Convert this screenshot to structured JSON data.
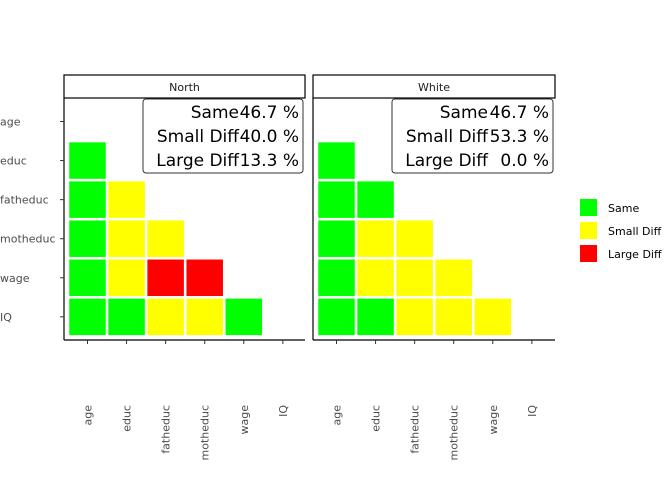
{
  "chart_data": {
    "type": "heatmap",
    "variables": [
      "age",
      "educ",
      "fatheduc",
      "motheduc",
      "wage",
      "IQ"
    ],
    "legend": {
      "placement": "right",
      "entries": [
        {
          "key": "same",
          "label": "Same",
          "color": "#00ff00"
        },
        {
          "key": "small",
          "label": "Small Diff",
          "color": "#ffff00"
        },
        {
          "key": "large",
          "label": "Large Diff",
          "color": "#ff0000"
        }
      ]
    },
    "panels": [
      {
        "title": "North",
        "summary": [
          {
            "label": "Same",
            "value": "46.7 %"
          },
          {
            "label": "Small Diff",
            "value": "40.0 %"
          },
          {
            "label": "Large Diff",
            "value": "13.3 %"
          }
        ],
        "cells": [
          {
            "x": "age",
            "y": "educ",
            "level": "same"
          },
          {
            "x": "age",
            "y": "fatheduc",
            "level": "same"
          },
          {
            "x": "educ",
            "y": "fatheduc",
            "level": "small"
          },
          {
            "x": "age",
            "y": "motheduc",
            "level": "same"
          },
          {
            "x": "educ",
            "y": "motheduc",
            "level": "small"
          },
          {
            "x": "fatheduc",
            "y": "motheduc",
            "level": "small"
          },
          {
            "x": "age",
            "y": "wage",
            "level": "same"
          },
          {
            "x": "educ",
            "y": "wage",
            "level": "small"
          },
          {
            "x": "fatheduc",
            "y": "wage",
            "level": "large"
          },
          {
            "x": "motheduc",
            "y": "wage",
            "level": "large"
          },
          {
            "x": "age",
            "y": "IQ",
            "level": "same"
          },
          {
            "x": "educ",
            "y": "IQ",
            "level": "same"
          },
          {
            "x": "fatheduc",
            "y": "IQ",
            "level": "small"
          },
          {
            "x": "motheduc",
            "y": "IQ",
            "level": "small"
          },
          {
            "x": "wage",
            "y": "IQ",
            "level": "same"
          }
        ]
      },
      {
        "title": "White",
        "summary": [
          {
            "label": "Same",
            "value": "46.7 %"
          },
          {
            "label": "Small Diff",
            "value": "53.3 %"
          },
          {
            "label": "Large Diff",
            "value": "0.0 %"
          }
        ],
        "cells": [
          {
            "x": "age",
            "y": "educ",
            "level": "same"
          },
          {
            "x": "age",
            "y": "fatheduc",
            "level": "same"
          },
          {
            "x": "educ",
            "y": "fatheduc",
            "level": "same"
          },
          {
            "x": "age",
            "y": "motheduc",
            "level": "same"
          },
          {
            "x": "educ",
            "y": "motheduc",
            "level": "small"
          },
          {
            "x": "fatheduc",
            "y": "motheduc",
            "level": "small"
          },
          {
            "x": "age",
            "y": "wage",
            "level": "same"
          },
          {
            "x": "educ",
            "y": "wage",
            "level": "small"
          },
          {
            "x": "fatheduc",
            "y": "wage",
            "level": "small"
          },
          {
            "x": "motheduc",
            "y": "wage",
            "level": "small"
          },
          {
            "x": "age",
            "y": "IQ",
            "level": "same"
          },
          {
            "x": "educ",
            "y": "IQ",
            "level": "same"
          },
          {
            "x": "fatheduc",
            "y": "IQ",
            "level": "small"
          },
          {
            "x": "motheduc",
            "y": "IQ",
            "level": "small"
          },
          {
            "x": "wage",
            "y": "IQ",
            "level": "small"
          }
        ]
      }
    ]
  }
}
